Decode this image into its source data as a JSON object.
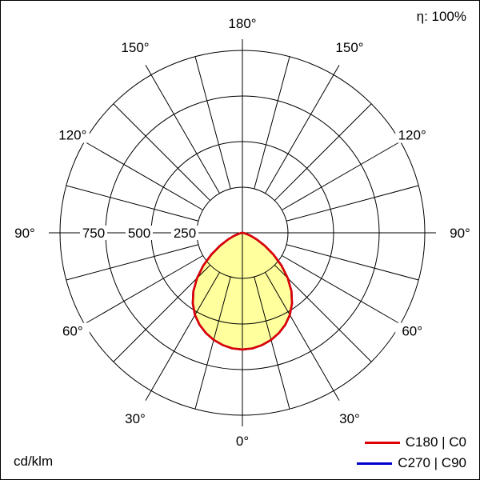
{
  "meta": {
    "efficiency_label": "η: 100%",
    "unit_label": "cd/klm"
  },
  "legend": [
    {
      "label": "C180 | C0",
      "color": "#e00000"
    },
    {
      "label": "C270 | C90",
      "color": "#0000cc"
    }
  ],
  "chart_data": {
    "type": "polar",
    "subtype": "photometric-light-distribution",
    "unit": "cd/klm",
    "efficiency": "η: 100%",
    "max_value": 1000,
    "rings": [
      {
        "value": 250,
        "label": "250"
      },
      {
        "value": 500,
        "label": "500"
      },
      {
        "value": 750,
        "label": "750"
      },
      {
        "value": 1000,
        "label": ""
      }
    ],
    "inner_grid_radius_value": 250,
    "spoke_step_deg": 15,
    "angle_labels": [
      {
        "text": "180°",
        "dir_deg": 0
      },
      {
        "text": "150°",
        "dir_deg": -30
      },
      {
        "text": "150°",
        "dir_deg": 30
      },
      {
        "text": "120°",
        "dir_deg": -60
      },
      {
        "text": "120°",
        "dir_deg": 60
      },
      {
        "text": "90°",
        "dir_deg": -90
      },
      {
        "text": "90°",
        "dir_deg": 90
      },
      {
        "text": "60°",
        "dir_deg": -120
      },
      {
        "text": "60°",
        "dir_deg": 120
      },
      {
        "text": "30°",
        "dir_deg": -150
      },
      {
        "text": "30°",
        "dir_deg": 150
      },
      {
        "text": "0°",
        "dir_deg": 180
      }
    ],
    "fill_color": "#ffff9e",
    "grid_color": "#000000",
    "series": [
      {
        "name": "C270 | C90",
        "color": "#0000cc",
        "symmetric": true,
        "gamma_deg": [
          0,
          5,
          10,
          15,
          20,
          25,
          30,
          35,
          40,
          45,
          50,
          55,
          60,
          65,
          70,
          75,
          80,
          85,
          90
        ],
        "values": [
          640,
          636,
          625,
          608,
          585,
          556,
          520,
          474,
          418,
          352,
          280,
          208,
          142,
          88,
          48,
          22,
          8,
          2,
          0
        ]
      },
      {
        "name": "C180 | C0",
        "color": "#e00000",
        "symmetric": true,
        "gamma_deg": [
          0,
          5,
          10,
          15,
          20,
          25,
          30,
          35,
          40,
          45,
          50,
          55,
          60,
          65,
          70,
          75,
          80,
          85,
          90
        ],
        "values": [
          640,
          636,
          625,
          608,
          585,
          556,
          520,
          474,
          418,
          352,
          280,
          208,
          142,
          88,
          48,
          22,
          8,
          2,
          0
        ]
      }
    ]
  }
}
